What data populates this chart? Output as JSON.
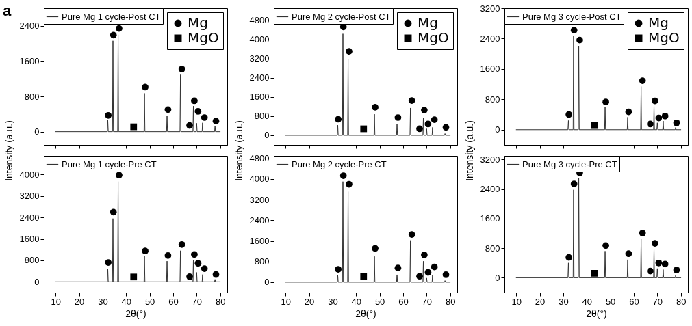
{
  "chart_data": [
    {
      "type": "line",
      "legend": "top left",
      "tick_labels": "y",
      "annotations": [
        "a"
      ],
      "xlim": [
        5,
        83
      ],
      "xticks": [
        10,
        20,
        30,
        40,
        50,
        60,
        70,
        80
      ],
      "ylim": [
        -300,
        2800
      ],
      "yticks": [
        0,
        800,
        1600,
        2400
      ],
      "x": [
        10,
        32.0,
        32.2,
        32.4,
        34.2,
        34.4,
        34.6,
        36.4,
        36.6,
        36.8,
        47.6,
        47.8,
        48.0,
        57.2,
        57.4,
        57.6,
        62.9,
        63.1,
        63.3,
        68.4,
        68.6,
        68.8,
        69.8,
        70.0,
        70.2,
        72.3,
        72.5,
        72.7,
        77.6,
        77.8,
        78.0,
        80
      ],
      "series": [
        {
          "name": "Pure Mg 1 cycle-Post CT",
          "color": "#333333",
          "values": [
            0,
            0,
            260,
            0,
            0,
            2060,
            0,
            0,
            2200,
            0,
            0,
            870,
            0,
            0,
            360,
            0,
            0,
            1290,
            0,
            0,
            580,
            0,
            0,
            190,
            0,
            0,
            200,
            0,
            0,
            130,
            0,
            0
          ]
        },
        {
          "name": "Mg",
          "type": "scatter",
          "marker": "circle",
          "color": "#000000",
          "x": [
            32.4,
            34.6,
            37.0,
            48.1,
            57.8,
            63.7,
            67.0,
            69.0,
            70.6,
            73.3,
            78.2
          ],
          "values": [
            370,
            2190,
            2340,
            1010,
            500,
            1420,
            140,
            700,
            460,
            320,
            240
          ]
        },
        {
          "name": "MgO",
          "type": "scatter",
          "marker": "square",
          "color": "#000000",
          "x": [
            43.2
          ],
          "values": [
            110
          ]
        }
      ]
    },
    {
      "type": "line",
      "legend": "top left",
      "tick_labels": "y",
      "xlim": [
        5,
        83
      ],
      "xticks": [
        10,
        20,
        30,
        40,
        50,
        60,
        70,
        80
      ],
      "ylim": [
        -400,
        5300
      ],
      "yticks": [
        0,
        800,
        1600,
        2400,
        3200,
        4000,
        4800
      ],
      "x": [
        10,
        32.0,
        32.2,
        32.4,
        34.2,
        34.4,
        34.6,
        36.4,
        36.6,
        36.8,
        47.6,
        47.8,
        48.0,
        57.2,
        57.4,
        57.6,
        62.9,
        63.1,
        63.3,
        68.4,
        68.6,
        68.8,
        69.8,
        70.0,
        70.2,
        72.3,
        72.5,
        72.7,
        77.6,
        77.8,
        78.0,
        80
      ],
      "series": [
        {
          "name": "Pure Mg 2 cycle-Post CT",
          "color": "#333333",
          "values": [
            0,
            0,
            420,
            0,
            0,
            4230,
            0,
            0,
            3170,
            0,
            0,
            880,
            0,
            0,
            470,
            0,
            0,
            1140,
            0,
            0,
            720,
            0,
            0,
            270,
            0,
            0,
            330,
            0,
            0,
            70,
            0,
            0
          ]
        },
        {
          "name": "Mg",
          "type": "scatter",
          "marker": "circle",
          "color": "#000000",
          "x": [
            32.4,
            34.6,
            37.0,
            48.1,
            57.8,
            63.7,
            67.0,
            69.0,
            70.6,
            73.3,
            78.2
          ],
          "values": [
            670,
            4520,
            3500,
            1170,
            740,
            1450,
            270,
            1050,
            470,
            650,
            330
          ]
        },
        {
          "name": "MgO",
          "type": "scatter",
          "marker": "square",
          "color": "#000000",
          "x": [
            43.2
          ],
          "values": [
            270
          ]
        }
      ]
    },
    {
      "type": "line",
      "legend": "top left",
      "tick_labels": "y",
      "xlim": [
        5,
        83
      ],
      "xticks": [
        10,
        20,
        30,
        40,
        50,
        60,
        70,
        80
      ],
      "ylim": [
        -400,
        3200
      ],
      "yticks": [
        0,
        800,
        1600,
        2400,
        3200
      ],
      "x": [
        10,
        32.0,
        32.2,
        32.4,
        34.2,
        34.4,
        34.6,
        36.4,
        36.6,
        36.8,
        47.6,
        47.8,
        48.0,
        57.2,
        57.4,
        57.6,
        62.9,
        63.1,
        63.3,
        68.4,
        68.6,
        68.8,
        69.8,
        70.0,
        70.2,
        72.3,
        72.5,
        72.7,
        77.6,
        77.8,
        78.0,
        80
      ],
      "series": [
        {
          "name": "Pure Mg 3 cycle-Post CT",
          "color": "#333333",
          "values": [
            0,
            0,
            240,
            0,
            0,
            2480,
            0,
            0,
            2210,
            0,
            0,
            600,
            0,
            0,
            330,
            0,
            0,
            1140,
            0,
            0,
            630,
            0,
            0,
            180,
            0,
            0,
            230,
            0,
            0,
            60,
            0,
            0
          ]
        },
        {
          "name": "Mg",
          "type": "scatter",
          "marker": "circle",
          "color": "#000000",
          "x": [
            32.4,
            34.6,
            37.0,
            48.1,
            57.8,
            63.7,
            67.0,
            69.0,
            70.6,
            73.3,
            78.2
          ],
          "values": [
            400,
            2620,
            2360,
            730,
            470,
            1290,
            150,
            760,
            310,
            360,
            180
          ]
        },
        {
          "name": "MgO",
          "type": "scatter",
          "marker": "square",
          "color": "#000000",
          "x": [
            43.2
          ],
          "values": [
            110
          ]
        }
      ]
    },
    {
      "type": "line",
      "legend": "top left",
      "xlabel": "2θ(°)",
      "ylabel": "Intensity (a.u.)",
      "xlim": [
        5,
        83
      ],
      "xticks": [
        10,
        20,
        30,
        40,
        50,
        60,
        70,
        80
      ],
      "ylim": [
        -400,
        4700
      ],
      "yticks": [
        0,
        800,
        1600,
        2400,
        3200,
        4000
      ],
      "x": [
        10,
        32.0,
        32.2,
        32.4,
        34.2,
        34.4,
        34.6,
        36.4,
        36.6,
        36.8,
        47.6,
        47.8,
        48.0,
        57.2,
        57.4,
        57.6,
        62.9,
        63.1,
        63.3,
        68.4,
        68.6,
        68.8,
        69.8,
        70.0,
        70.2,
        72.3,
        72.5,
        72.7,
        77.6,
        77.8,
        78.0,
        80
      ],
      "series": [
        {
          "name": "Pure Mg 1 cycle-Pre CT",
          "color": "#333333",
          "values": [
            0,
            0,
            490,
            0,
            0,
            2360,
            0,
            0,
            3740,
            0,
            0,
            960,
            0,
            0,
            770,
            0,
            0,
            1160,
            0,
            0,
            820,
            0,
            0,
            350,
            0,
            0,
            270,
            0,
            0,
            90,
            0,
            0
          ]
        },
        {
          "type": "scatter",
          "marker": "circle",
          "color": "#000000",
          "x": [
            32.4,
            34.6,
            37.0,
            48.1,
            57.8,
            63.7,
            67.0,
            69.0,
            70.6,
            73.3,
            78.2
          ],
          "values": [
            720,
            2600,
            3980,
            1150,
            980,
            1390,
            190,
            1020,
            690,
            490,
            270
          ]
        },
        {
          "type": "scatter",
          "marker": "square",
          "color": "#000000",
          "x": [
            43.2
          ],
          "values": [
            180
          ]
        }
      ]
    },
    {
      "type": "line",
      "legend": "top left",
      "xlabel": "2θ(°)",
      "ylabel": "Intensity (a.u.)",
      "xlim": [
        5,
        83
      ],
      "xticks": [
        10,
        20,
        30,
        40,
        50,
        60,
        70,
        80
      ],
      "ylim": [
        -400,
        4900
      ],
      "yticks": [
        0,
        800,
        1600,
        2400,
        3200,
        4000,
        4800
      ],
      "x": [
        10,
        32.0,
        32.2,
        32.4,
        34.2,
        34.4,
        34.6,
        36.4,
        36.6,
        36.8,
        47.6,
        47.8,
        48.0,
        57.2,
        57.4,
        57.6,
        62.9,
        63.1,
        63.3,
        68.4,
        68.6,
        68.8,
        69.8,
        70.0,
        70.2,
        72.3,
        72.5,
        72.7,
        77.6,
        77.8,
        78.0,
        80
      ],
      "series": [
        {
          "name": "Pure Mg 2 cycle-Pre CT",
          "color": "#333333",
          "values": [
            0,
            0,
            270,
            0,
            0,
            3900,
            0,
            0,
            3510,
            0,
            0,
            1000,
            0,
            0,
            290,
            0,
            0,
            1620,
            0,
            0,
            810,
            0,
            0,
            160,
            0,
            0,
            270,
            0,
            0,
            60,
            0,
            0
          ]
        },
        {
          "type": "scatter",
          "marker": "circle",
          "color": "#000000",
          "x": [
            32.4,
            34.6,
            37.0,
            48.1,
            57.8,
            63.7,
            67.0,
            69.0,
            70.6,
            73.3,
            78.2
          ],
          "values": [
            500,
            4130,
            3800,
            1310,
            550,
            1850,
            230,
            1060,
            380,
            590,
            290
          ]
        },
        {
          "type": "scatter",
          "marker": "square",
          "color": "#000000",
          "x": [
            43.2
          ],
          "values": [
            230
          ]
        }
      ]
    },
    {
      "type": "line",
      "legend": "top left",
      "xlabel": "2θ(°)",
      "ylabel": "Intensity (a.u.)",
      "xlim": [
        5,
        83
      ],
      "xticks": [
        10,
        20,
        30,
        40,
        50,
        60,
        70,
        80
      ],
      "ylim": [
        -400,
        3300
      ],
      "yticks": [
        0,
        800,
        1600,
        2400,
        3200
      ],
      "x": [
        10,
        32.0,
        32.2,
        32.4,
        34.2,
        34.4,
        34.6,
        36.4,
        36.6,
        36.8,
        47.6,
        47.8,
        48.0,
        57.2,
        57.4,
        57.6,
        62.9,
        63.1,
        63.3,
        68.4,
        68.6,
        68.8,
        69.8,
        70.0,
        70.2,
        72.3,
        72.5,
        72.7,
        77.6,
        77.8,
        78.0,
        80
      ],
      "series": [
        {
          "name": "Pure Mg 3 cycle-Pre CT",
          "color": "#333333",
          "values": [
            0,
            0,
            400,
            0,
            0,
            2380,
            0,
            0,
            2690,
            0,
            0,
            720,
            0,
            0,
            490,
            0,
            0,
            1050,
            0,
            0,
            780,
            0,
            0,
            250,
            0,
            0,
            220,
            0,
            0,
            70,
            0,
            0
          ]
        },
        {
          "type": "scatter",
          "marker": "circle",
          "color": "#000000",
          "x": [
            32.4,
            34.6,
            37.0,
            48.1,
            57.8,
            63.7,
            67.0,
            69.0,
            70.6,
            73.3,
            78.2
          ],
          "values": [
            550,
            2540,
            2840,
            870,
            650,
            1210,
            180,
            930,
            400,
            370,
            210
          ]
        },
        {
          "type": "scatter",
          "marker": "square",
          "color": "#000000",
          "x": [
            43.2
          ],
          "values": [
            120
          ]
        }
      ]
    }
  ]
}
